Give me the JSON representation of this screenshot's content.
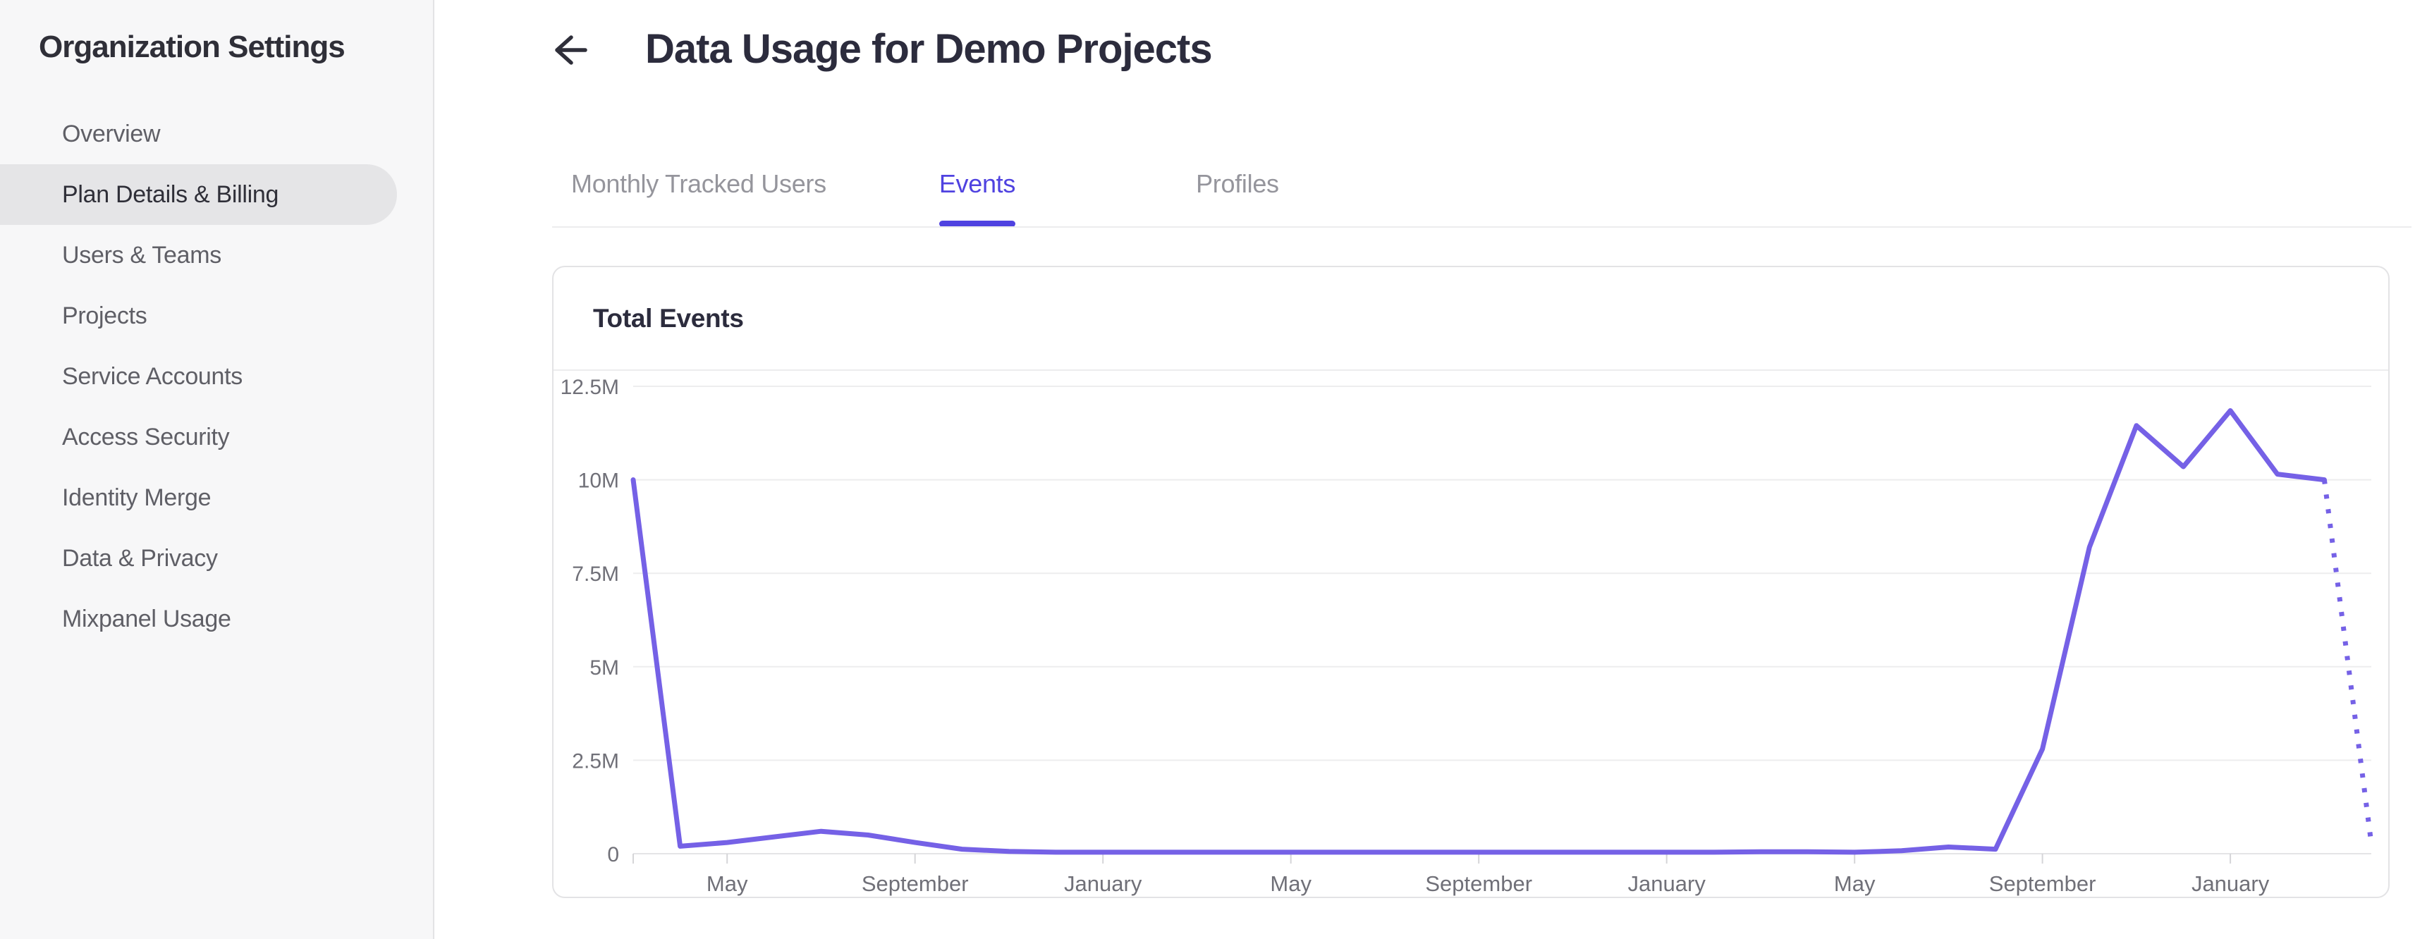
{
  "sidebar": {
    "title": "Organization Settings",
    "items": [
      {
        "label": "Overview",
        "selected": false
      },
      {
        "label": "Plan Details & Billing",
        "selected": true
      },
      {
        "label": "Users & Teams",
        "selected": false
      },
      {
        "label": "Projects",
        "selected": false
      },
      {
        "label": "Service Accounts",
        "selected": false
      },
      {
        "label": "Access Security",
        "selected": false
      },
      {
        "label": "Identity Merge",
        "selected": false
      },
      {
        "label": "Data & Privacy",
        "selected": false
      },
      {
        "label": "Mixpanel Usage",
        "selected": false
      }
    ]
  },
  "header": {
    "title": "Data Usage for Demo Projects"
  },
  "tabs": [
    {
      "label": "Monthly Tracked Users",
      "active": false
    },
    {
      "label": "Events",
      "active": true
    },
    {
      "label": "Profiles",
      "active": false
    }
  ],
  "card": {
    "title": "Total Events"
  },
  "colors": {
    "accent": "#4f42e0",
    "line": "#7561e6",
    "sidebar_bg": "#f7f7f8",
    "sidebar_selected_bg": "#e5e5e7",
    "card_border": "#e3e3e5",
    "grid_line": "#ededee",
    "axis_line": "#e4e4e6",
    "tick_mark": "#d5d5d8",
    "title_text": "#2c2c3d",
    "sidebar_item_text": "#5f5f66",
    "tab_inactive_text": "#95959c",
    "axis_label_text": "#707078"
  },
  "chart_data": {
    "type": "line",
    "title": "Total Events",
    "grid": true,
    "legend": false,
    "y_tick_labels": [
      "12.5M",
      "10M",
      "7.5M",
      "5M",
      "2.5M",
      "0"
    ],
    "y_ticks_events": [
      12500000,
      10000000,
      7500000,
      5000000,
      2500000,
      0
    ],
    "ylim": [
      0,
      12500000
    ],
    "x_tick_labels": [
      "May",
      "September",
      "January",
      "May",
      "September",
      "January",
      "May",
      "September",
      "January"
    ],
    "x_tick_point_indices": [
      2,
      6,
      10,
      14,
      18,
      22,
      26,
      30,
      34
    ],
    "points_are_monthly": true,
    "series": [
      {
        "name": "Total Events",
        "color": "#7561e6",
        "values_millions": [
          10,
          0.2,
          0.3,
          0.45,
          0.6,
          0.5,
          0.3,
          0.12,
          0.06,
          0.04,
          0.04,
          0.04,
          0.04,
          0.04,
          0.04,
          0.04,
          0.04,
          0.04,
          0.04,
          0.04,
          0.04,
          0.04,
          0.04,
          0.04,
          0.05,
          0.05,
          0.04,
          0.08,
          0.18,
          0.12,
          2.8,
          8.2,
          11.45,
          10.35,
          11.85,
          10.15,
          10,
          0.28
        ],
        "final_segment_projected_dotted": true
      }
    ]
  }
}
